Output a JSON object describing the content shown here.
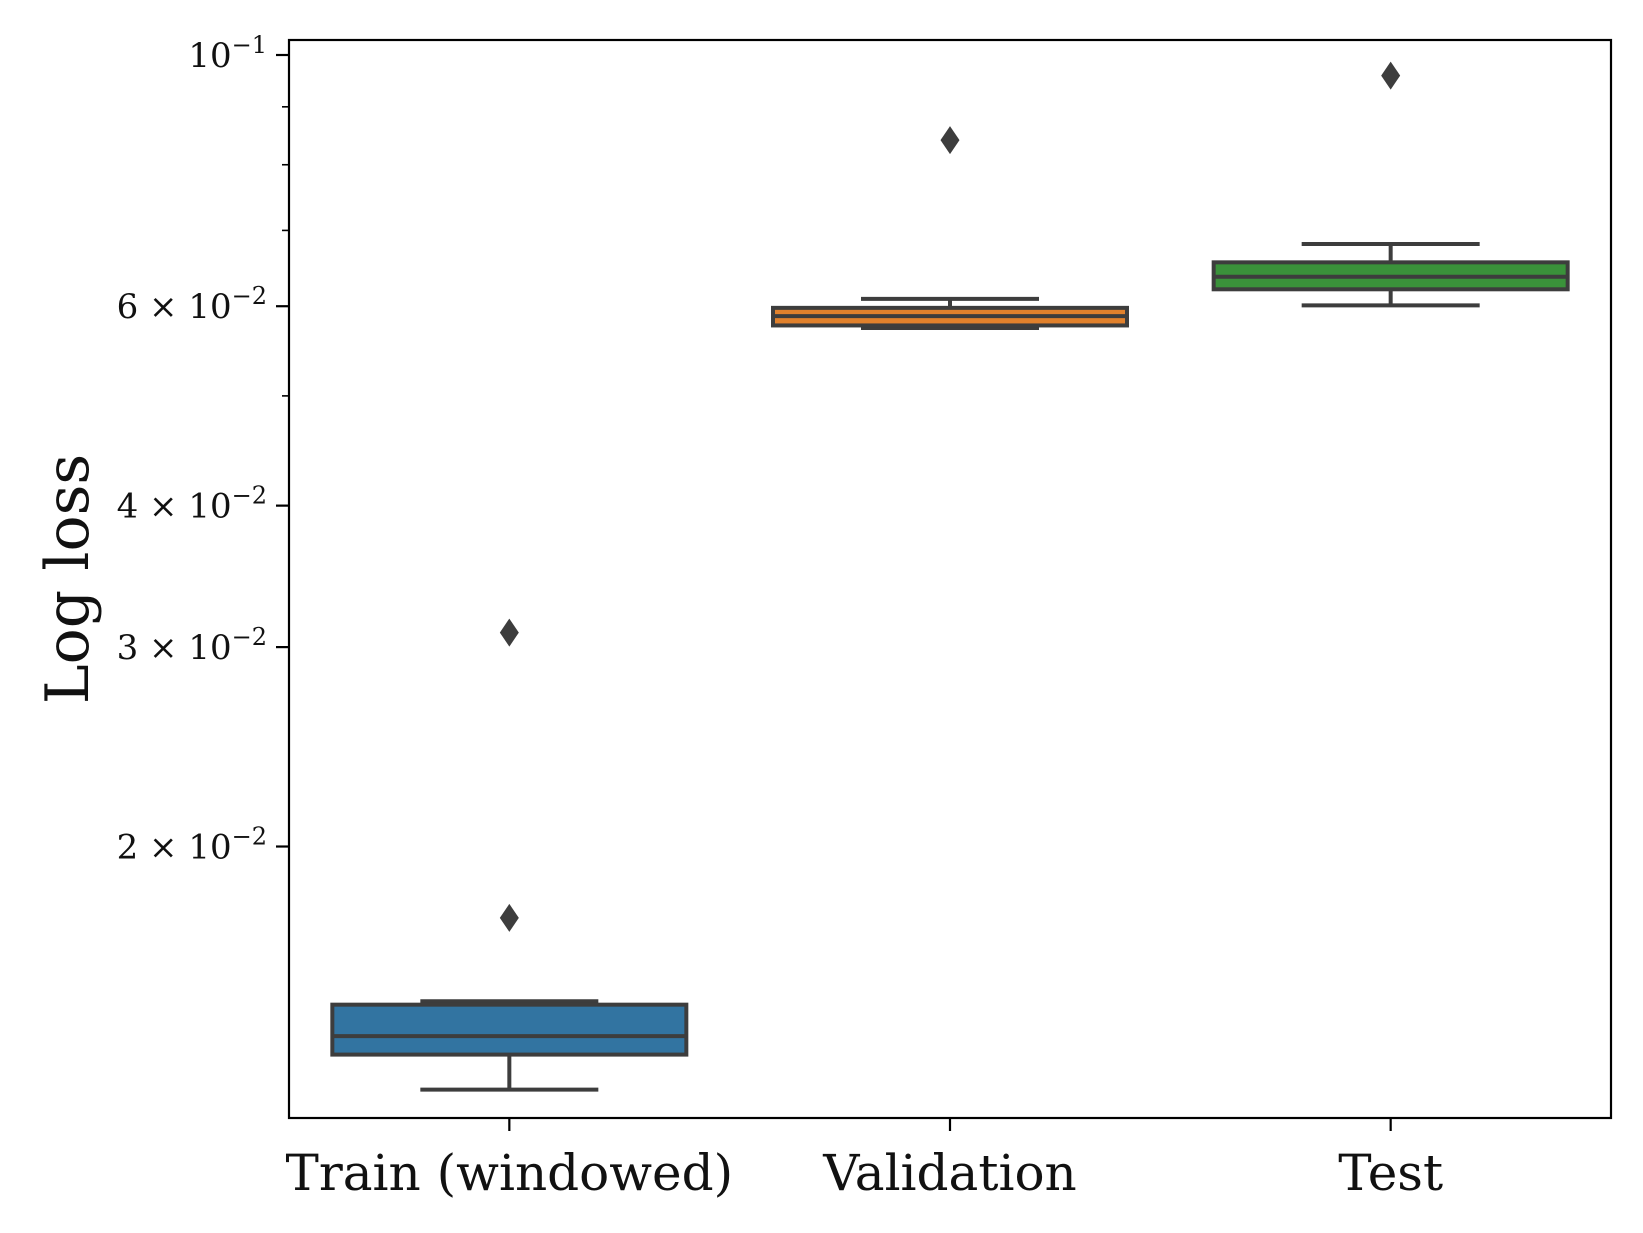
{
  "chart_data": {
    "type": "boxplot",
    "title": "",
    "xlabel": "",
    "ylabel": "Log loss",
    "yscale": "log",
    "ylim": [
      0.0118,
      0.1
    ],
    "grid": false,
    "legend": "none",
    "edge_color": "#3d3d3d",
    "y_ticks": [
      {
        "value": 0.1,
        "mantissa": "",
        "exponent": "−1"
      },
      {
        "value": 0.06,
        "mantissa": "6",
        "exponent": "−2"
      },
      {
        "value": 0.04,
        "mantissa": "4",
        "exponent": "−2"
      },
      {
        "value": 0.03,
        "mantissa": "3",
        "exponent": "−2"
      },
      {
        "value": 0.02,
        "mantissa": "2",
        "exponent": "−2"
      }
    ],
    "y_minor_ticks": [
      0.09,
      0.08,
      0.07,
      0.05
    ],
    "tick_times": "×",
    "tick_base": "10",
    "categories": [
      "Train (windowed)",
      "Validation",
      "Test"
    ],
    "series": [
      {
        "name": "Train (windowed)",
        "color": "#3274a1",
        "whisker_low": 0.0122,
        "q1": 0.0131,
        "median": 0.0136,
        "q3": 0.0145,
        "whisker_high": 0.0146,
        "outliers": [
          0.0309,
          0.0173
        ]
      },
      {
        "name": "Validation",
        "color": "#e1812c",
        "whisker_low": 0.0574,
        "q1": 0.0577,
        "median": 0.0588,
        "q3": 0.0598,
        "whisker_high": 0.0609,
        "outliers": [
          0.0841
        ]
      },
      {
        "name": "Test",
        "color": "#3a923a",
        "whisker_low": 0.0601,
        "q1": 0.0621,
        "median": 0.0637,
        "q3": 0.0656,
        "whisker_high": 0.0681,
        "outliers": [
          0.0959
        ]
      }
    ]
  }
}
